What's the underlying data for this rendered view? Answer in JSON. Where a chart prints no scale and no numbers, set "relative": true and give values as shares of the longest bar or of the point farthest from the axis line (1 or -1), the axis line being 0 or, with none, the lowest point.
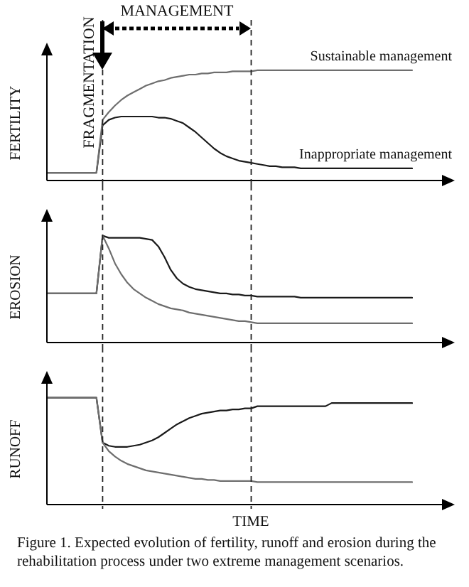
{
  "chart_data": [
    {
      "type": "line",
      "relative": true,
      "ylabel": "FERTILITY",
      "categories": [
        null,
        null,
        null,
        null,
        null,
        null,
        null,
        null,
        null,
        null,
        null,
        null,
        null,
        null,
        null,
        null,
        null,
        null,
        null,
        null,
        null,
        null,
        null,
        null,
        null,
        null,
        null,
        null,
        null,
        null,
        null,
        null,
        null,
        null,
        null,
        null,
        null,
        null,
        null,
        null,
        null,
        null,
        null,
        null,
        null,
        null,
        null,
        null,
        null,
        null,
        null,
        null,
        null,
        null,
        null,
        null,
        null,
        null,
        null,
        null
      ],
      "series": [
        {
          "name": "Sustainable management",
          "color": "#6e6e6e",
          "values": [
            0.07,
            0.07,
            0.07,
            0.07,
            0.07,
            0.07,
            0.07,
            0.07,
            0.07,
            0.55,
            0.62,
            0.68,
            0.73,
            0.77,
            0.8,
            0.83,
            0.86,
            0.88,
            0.9,
            0.91,
            0.93,
            0.94,
            0.95,
            0.96,
            0.96,
            0.97,
            0.97,
            0.98,
            0.98,
            0.98,
            0.99,
            0.99,
            0.99,
            0.99,
            1,
            1,
            1,
            1,
            1,
            1,
            1,
            1,
            1,
            1,
            1,
            1,
            1,
            1,
            1,
            1,
            1,
            1,
            1,
            1,
            1,
            1,
            1,
            1,
            1,
            1
          ]
        },
        {
          "name": "Inappropriate management",
          "color": "#1a1a1a",
          "values": [
            0.07,
            0.07,
            0.07,
            0.07,
            0.07,
            0.07,
            0.07,
            0.07,
            0.07,
            0.5,
            0.55,
            0.57,
            0.58,
            0.58,
            0.58,
            0.58,
            0.58,
            0.58,
            0.57,
            0.57,
            0.56,
            0.54,
            0.52,
            0.48,
            0.44,
            0.39,
            0.34,
            0.29,
            0.25,
            0.22,
            0.2,
            0.18,
            0.17,
            0.16,
            0.15,
            0.14,
            0.13,
            0.13,
            0.12,
            0.12,
            0.12,
            0.11,
            0.11,
            0.11,
            0.11,
            0.11,
            0.11,
            0.11,
            0.11,
            0.11,
            0.11,
            0.11,
            0.11,
            0.11,
            0.11,
            0.11,
            0.11,
            0.11,
            0.11,
            0.11
          ]
        }
      ],
      "annotations": [
        "FRAGMENTATION",
        "MANAGEMENT"
      ]
    },
    {
      "type": "line",
      "relative": true,
      "ylabel": "EROSION",
      "categories": [
        null,
        null,
        null,
        null,
        null,
        null,
        null,
        null,
        null,
        null,
        null,
        null,
        null,
        null,
        null,
        null,
        null,
        null,
        null,
        null,
        null,
        null,
        null,
        null,
        null,
        null,
        null,
        null,
        null,
        null,
        null,
        null,
        null,
        null,
        null,
        null,
        null,
        null,
        null,
        null,
        null,
        null,
        null,
        null,
        null,
        null,
        null,
        null,
        null,
        null,
        null,
        null,
        null,
        null,
        null,
        null,
        null,
        null,
        null,
        null
      ],
      "series": [
        {
          "color": "#6e6e6e",
          "values": [
            0.46,
            0.46,
            0.46,
            0.46,
            0.46,
            0.46,
            0.46,
            0.46,
            0.46,
            1,
            0.88,
            0.74,
            0.64,
            0.56,
            0.5,
            0.46,
            0.42,
            0.39,
            0.36,
            0.34,
            0.32,
            0.31,
            0.3,
            0.28,
            0.27,
            0.26,
            0.25,
            0.24,
            0.23,
            0.22,
            0.21,
            0.2,
            0.2,
            0.19,
            0.18,
            0.18,
            0.18,
            0.18,
            0.18,
            0.18,
            0.18,
            0.18,
            0.18,
            0.18,
            0.18,
            0.18,
            0.18,
            0.18,
            0.18,
            0.18,
            0.18,
            0.18,
            0.18,
            0.18,
            0.18,
            0.18,
            0.18,
            0.18,
            0.18,
            0.18
          ]
        },
        {
          "color": "#1a1a1a",
          "values": [
            0.46,
            0.46,
            0.46,
            0.46,
            0.46,
            0.46,
            0.46,
            0.46,
            0.46,
            1,
            0.98,
            0.98,
            0.98,
            0.98,
            0.98,
            0.98,
            0.97,
            0.96,
            0.9,
            0.8,
            0.68,
            0.6,
            0.55,
            0.52,
            0.5,
            0.49,
            0.48,
            0.47,
            0.46,
            0.46,
            0.45,
            0.45,
            0.44,
            0.44,
            0.43,
            0.43,
            0.43,
            0.43,
            0.43,
            0.43,
            0.43,
            0.42,
            0.42,
            0.42,
            0.42,
            0.42,
            0.42,
            0.42,
            0.42,
            0.42,
            0.42,
            0.42,
            0.42,
            0.42,
            0.42,
            0.42,
            0.42,
            0.42,
            0.42,
            0.42
          ]
        }
      ]
    },
    {
      "type": "line",
      "relative": true,
      "ylabel": "RUNOFF",
      "xlabel": "TIME",
      "categories": [
        null,
        null,
        null,
        null,
        null,
        null,
        null,
        null,
        null,
        null,
        null,
        null,
        null,
        null,
        null,
        null,
        null,
        null,
        null,
        null,
        null,
        null,
        null,
        null,
        null,
        null,
        null,
        null,
        null,
        null,
        null,
        null,
        null,
        null,
        null,
        null,
        null,
        null,
        null,
        null,
        null,
        null,
        null,
        null,
        null,
        null,
        null,
        null,
        null,
        null,
        null,
        null,
        null,
        null,
        null,
        null,
        null,
        null,
        null,
        null
      ],
      "series": [
        {
          "color": "#6e6e6e",
          "values": [
            1,
            1,
            1,
            1,
            1,
            1,
            1,
            1,
            1,
            0.58,
            0.5,
            0.45,
            0.41,
            0.38,
            0.36,
            0.34,
            0.32,
            0.31,
            0.3,
            0.29,
            0.28,
            0.27,
            0.26,
            0.25,
            0.24,
            0.24,
            0.23,
            0.23,
            0.22,
            0.22,
            0.22,
            0.22,
            0.22,
            0.22,
            0.21,
            0.21,
            0.21,
            0.21,
            0.21,
            0.21,
            0.21,
            0.21,
            0.21,
            0.21,
            0.21,
            0.21,
            0.21,
            0.21,
            0.21,
            0.21,
            0.21,
            0.21,
            0.21,
            0.21,
            0.21,
            0.21,
            0.21,
            0.21,
            0.21,
            0.21
          ]
        },
        {
          "color": "#1a1a1a",
          "values": [
            1,
            1,
            1,
            1,
            1,
            1,
            1,
            1,
            1,
            0.58,
            0.55,
            0.54,
            0.54,
            0.54,
            0.55,
            0.56,
            0.58,
            0.6,
            0.63,
            0.67,
            0.71,
            0.75,
            0.78,
            0.81,
            0.83,
            0.85,
            0.86,
            0.87,
            0.88,
            0.88,
            0.89,
            0.89,
            0.9,
            0.9,
            0.92,
            0.92,
            0.92,
            0.92,
            0.92,
            0.92,
            0.92,
            0.92,
            0.92,
            0.92,
            0.92,
            0.92,
            0.95,
            0.95,
            0.95,
            0.95,
            0.95,
            0.95,
            0.95,
            0.95,
            0.95,
            0.95,
            0.95,
            0.95,
            0.95,
            0.95
          ]
        }
      ],
      "annotations": [
        "Figure 1. Expected evolution of fertility, runoff and erosion during the rehabilitation process under two extreme management scenarios."
      ]
    }
  ]
}
